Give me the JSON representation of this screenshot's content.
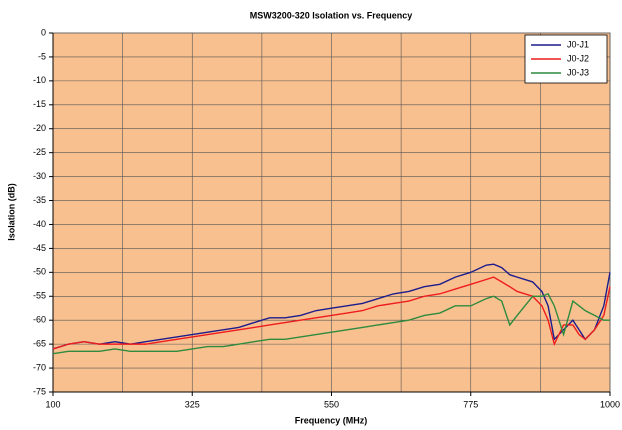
{
  "chart_data": {
    "type": "line",
    "title": "MSW3200-320 Isolation vs. Frequency",
    "xlabel": "Frequency (MHz)",
    "ylabel": "Isolation (dB)",
    "x": [
      100,
      125,
      150,
      175,
      200,
      225,
      250,
      275,
      300,
      325,
      350,
      375,
      400,
      425,
      450,
      475,
      500,
      525,
      550,
      575,
      600,
      625,
      650,
      675,
      700,
      725,
      750,
      775,
      800,
      812,
      825,
      838,
      850,
      875,
      890,
      900,
      910,
      925,
      940,
      950,
      960,
      975,
      990,
      1000
    ],
    "series": [
      {
        "name": "J0-J1",
        "color": "#1c1c8c",
        "values": [
          -66,
          -65,
          -64.5,
          -65,
          -64.5,
          -65,
          -64.5,
          -64,
          -63.5,
          -63,
          -62.5,
          -62,
          -61.5,
          -60.5,
          -59.5,
          -59.5,
          -59,
          -58,
          -57.5,
          -57,
          -56.5,
          -55.5,
          -54.5,
          -54,
          -53,
          -52.5,
          -51,
          -50,
          -48.5,
          -48.3,
          -49,
          -50.5,
          -51,
          -52,
          -54,
          -57,
          -64,
          -62,
          -60,
          -62,
          -64,
          -62,
          -57,
          -50
        ]
      },
      {
        "name": "J0-J2",
        "color": "#ee1c1c",
        "values": [
          -66,
          -65,
          -64.5,
          -65,
          -65,
          -65,
          -65,
          -64.5,
          -64,
          -63.5,
          -63,
          -62.5,
          -62,
          -61.5,
          -61,
          -60.5,
          -60,
          -59.5,
          -59,
          -58.5,
          -58,
          -57,
          -56.5,
          -56,
          -55,
          -54.5,
          -53.5,
          -52.5,
          -51.5,
          -51,
          -52,
          -53,
          -54,
          -55,
          -57,
          -60,
          -65,
          -61,
          -61,
          -63,
          -64,
          -62,
          -59,
          -53
        ]
      },
      {
        "name": "J0-J3",
        "color": "#2e8b3e",
        "values": [
          -67,
          -66.5,
          -66.5,
          -66.5,
          -66,
          -66.5,
          -66.5,
          -66.5,
          -66.5,
          -66,
          -65.5,
          -65.5,
          -65,
          -64.5,
          -64,
          -64,
          -63.5,
          -63,
          -62.5,
          -62,
          -61.5,
          -61,
          -60.5,
          -60,
          -59,
          -58.5,
          -57,
          -57,
          -55.5,
          -55,
          -56,
          -61,
          -59,
          -55,
          -55,
          -54.5,
          -57,
          -63,
          -56,
          -57,
          -58,
          -59,
          -60,
          -60
        ]
      }
    ],
    "xlim": [
      100,
      1000
    ],
    "ylim": [
      -75,
      0
    ],
    "xticks": [
      100,
      325,
      550,
      775,
      1000
    ],
    "xgrid": [
      100,
      212.5,
      325,
      437.5,
      550,
      662.5,
      775,
      887.5,
      1000
    ],
    "yticks": [
      0,
      -5,
      -10,
      -15,
      -20,
      -25,
      -30,
      -35,
      -40,
      -45,
      -50,
      -55,
      -60,
      -65,
      -70,
      -75
    ],
    "grid": true,
    "legend": "upper right",
    "background": "#f9c08f"
  }
}
